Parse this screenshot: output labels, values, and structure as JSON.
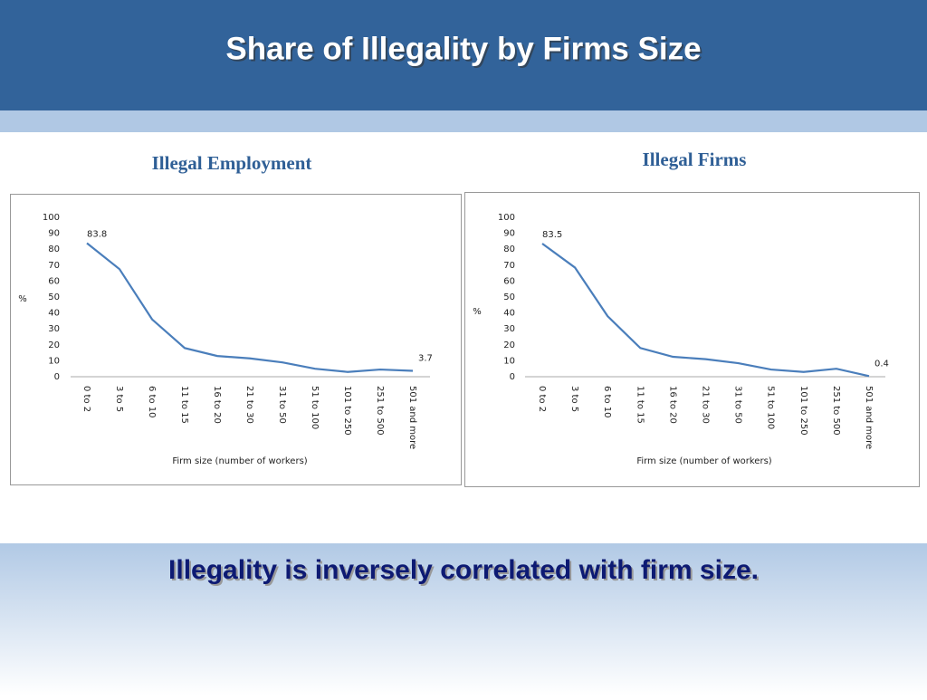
{
  "title": "Share of Illegality by Firms Size",
  "conclusion": "Illegality is inversely correlated with firm size.",
  "chart_data": [
    {
      "type": "line",
      "title": "Illegal Employment",
      "ylabel": "%",
      "xlabel": "Firm size (number of workers)",
      "categories": [
        "0 to 2",
        "3 to 5",
        "6 to 10",
        "11 to 15",
        "16 to 20",
        "21 to 30",
        "31 to 50",
        "51 to 100",
        "101 to 250",
        "251 to 500",
        "501 and more"
      ],
      "values": [
        83.8,
        67.5,
        36,
        18,
        13,
        11.5,
        9,
        5,
        3,
        4.5,
        3.7
      ],
      "value_labels": [
        "83.8",
        null,
        null,
        null,
        null,
        null,
        null,
        null,
        null,
        null,
        "3.7"
      ],
      "color": "#4a7ebb",
      "ylim": [
        0,
        100
      ],
      "yticks": [
        0,
        10,
        20,
        30,
        40,
        50,
        60,
        70,
        80,
        90,
        100
      ],
      "grid": false
    },
    {
      "type": "line",
      "title": "Illegal Firms",
      "ylabel": "%",
      "xlabel": "Firm size (number of workers)",
      "categories": [
        "0 to 2",
        "3 to 5",
        "6 to 10",
        "11 to 15",
        "16 to 20",
        "21 to 30",
        "31 to 50",
        "51 to 100",
        "101 to 250",
        "251 to 500",
        "501 and more"
      ],
      "values": [
        83.5,
        68.5,
        38,
        18,
        12.5,
        11,
        8.5,
        4.5,
        3,
        5,
        0.4
      ],
      "value_labels": [
        "83.5",
        null,
        null,
        null,
        null,
        null,
        null,
        null,
        null,
        null,
        "0.4"
      ],
      "color": "#4a7ebb",
      "ylim": [
        0,
        100
      ],
      "yticks": [
        0,
        10,
        20,
        30,
        40,
        50,
        60,
        70,
        80,
        90,
        100
      ],
      "grid": false
    }
  ]
}
